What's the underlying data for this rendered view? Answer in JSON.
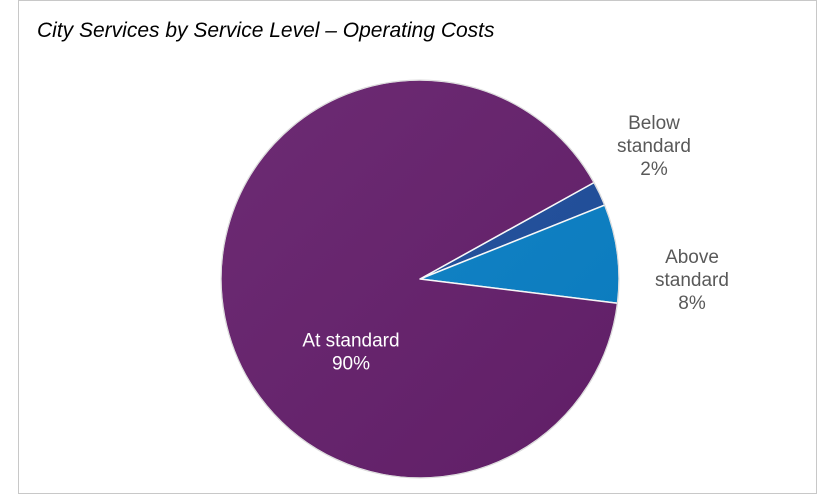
{
  "chart_data": {
    "type": "pie",
    "title": "City Services by Service Level – Operating Costs",
    "slices": [
      {
        "label": "Below standard",
        "label_lines": [
          "Below",
          "standard"
        ],
        "value": 2,
        "value_label": "2%",
        "color": "#1f4e9c"
      },
      {
        "label": "Above standard",
        "label_lines": [
          "Above",
          "standard"
        ],
        "value": 8,
        "value_label": "8%",
        "color": "#0a80c6"
      },
      {
        "label": "At standard",
        "label_lines": [
          "At standard"
        ],
        "value": 90,
        "value_label": "90%",
        "color": "#65206c"
      }
    ],
    "legend": "none",
    "data_labels": "category and percent"
  }
}
